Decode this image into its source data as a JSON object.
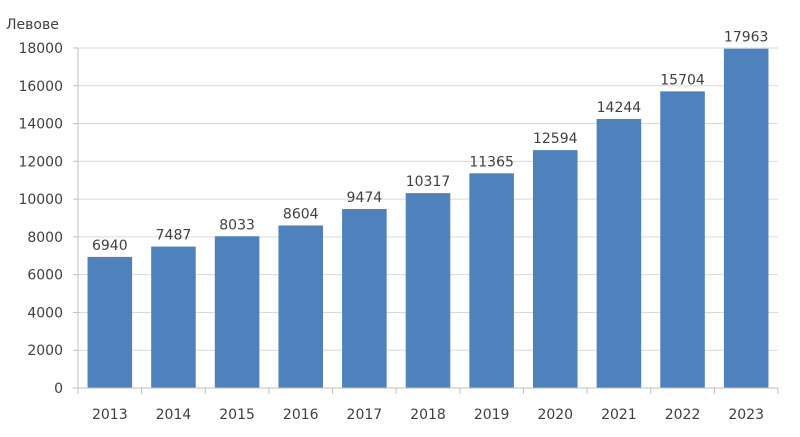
{
  "chart_data": {
    "type": "bar",
    "title": "",
    "xlabel": "",
    "ylabel": "Левове",
    "categories": [
      "2013",
      "2014",
      "2015",
      "2016",
      "2017",
      "2018",
      "2019",
      "2020",
      "2021",
      "2022",
      "2023"
    ],
    "values": [
      6940,
      7487,
      8033,
      8604,
      9474,
      10317,
      11365,
      12594,
      14244,
      15704,
      17963
    ],
    "ylim": [
      0,
      18000
    ],
    "yticks": [
      0,
      2000,
      4000,
      6000,
      8000,
      10000,
      12000,
      14000,
      16000,
      18000
    ],
    "grid": true,
    "legend": "none",
    "colors": {
      "bar": "#4f81bd",
      "grid": "#d9d9d9",
      "axis": "#bfbfbf",
      "text": "#404040"
    }
  }
}
